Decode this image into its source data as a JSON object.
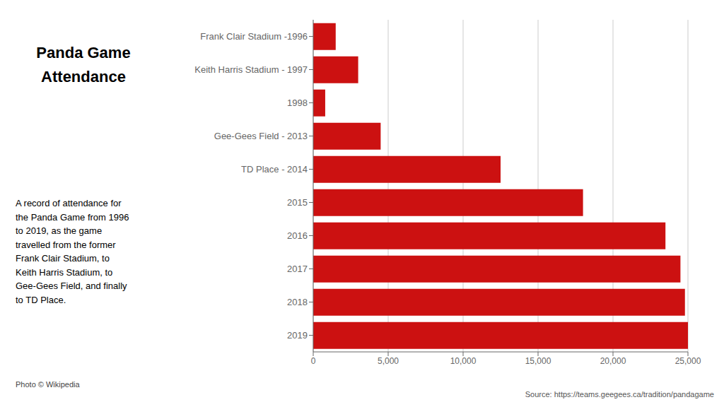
{
  "chart_data": {
    "type": "bar",
    "orientation": "horizontal",
    "title": "Panda Game\nAttendance",
    "subtitle": "A record of attendance for\nthe Panda Game from 1996\nto 2019, as the game\ntravelled from the former\nFrank Clair Stadium, to\nKeith Harris Stadium, to\nGee-Gees Field, and finally\nto TD Place.",
    "annotations": [
      "Photo © Wikipedia",
      "Source: https://teams.geegees.ca/tradition/pandagame"
    ],
    "categories": [
      "Frank Clair Stadium -1996",
      "Keith Harris Stadium - 1997",
      "1998",
      "Gee-Gees Field - 2013",
      "TD Place - 2014",
      "2015",
      "2016",
      "2017",
      "2018",
      "2019"
    ],
    "values": [
      1500,
      3000,
      800,
      4500,
      12500,
      18000,
      23500,
      24500,
      24800,
      25000
    ],
    "color": "#cc1111",
    "xlim": [
      0,
      25000
    ],
    "xticks": [
      0,
      {
        "value": 5000,
        "label": "5,000"
      },
      {
        "value": 10000,
        "label": "10,000"
      },
      {
        "value": 15000,
        "label": "15,000"
      },
      {
        "value": 20000,
        "label": "20,000"
      },
      {
        "value": 25000,
        "label": "25,000"
      }
    ],
    "grid": true
  }
}
